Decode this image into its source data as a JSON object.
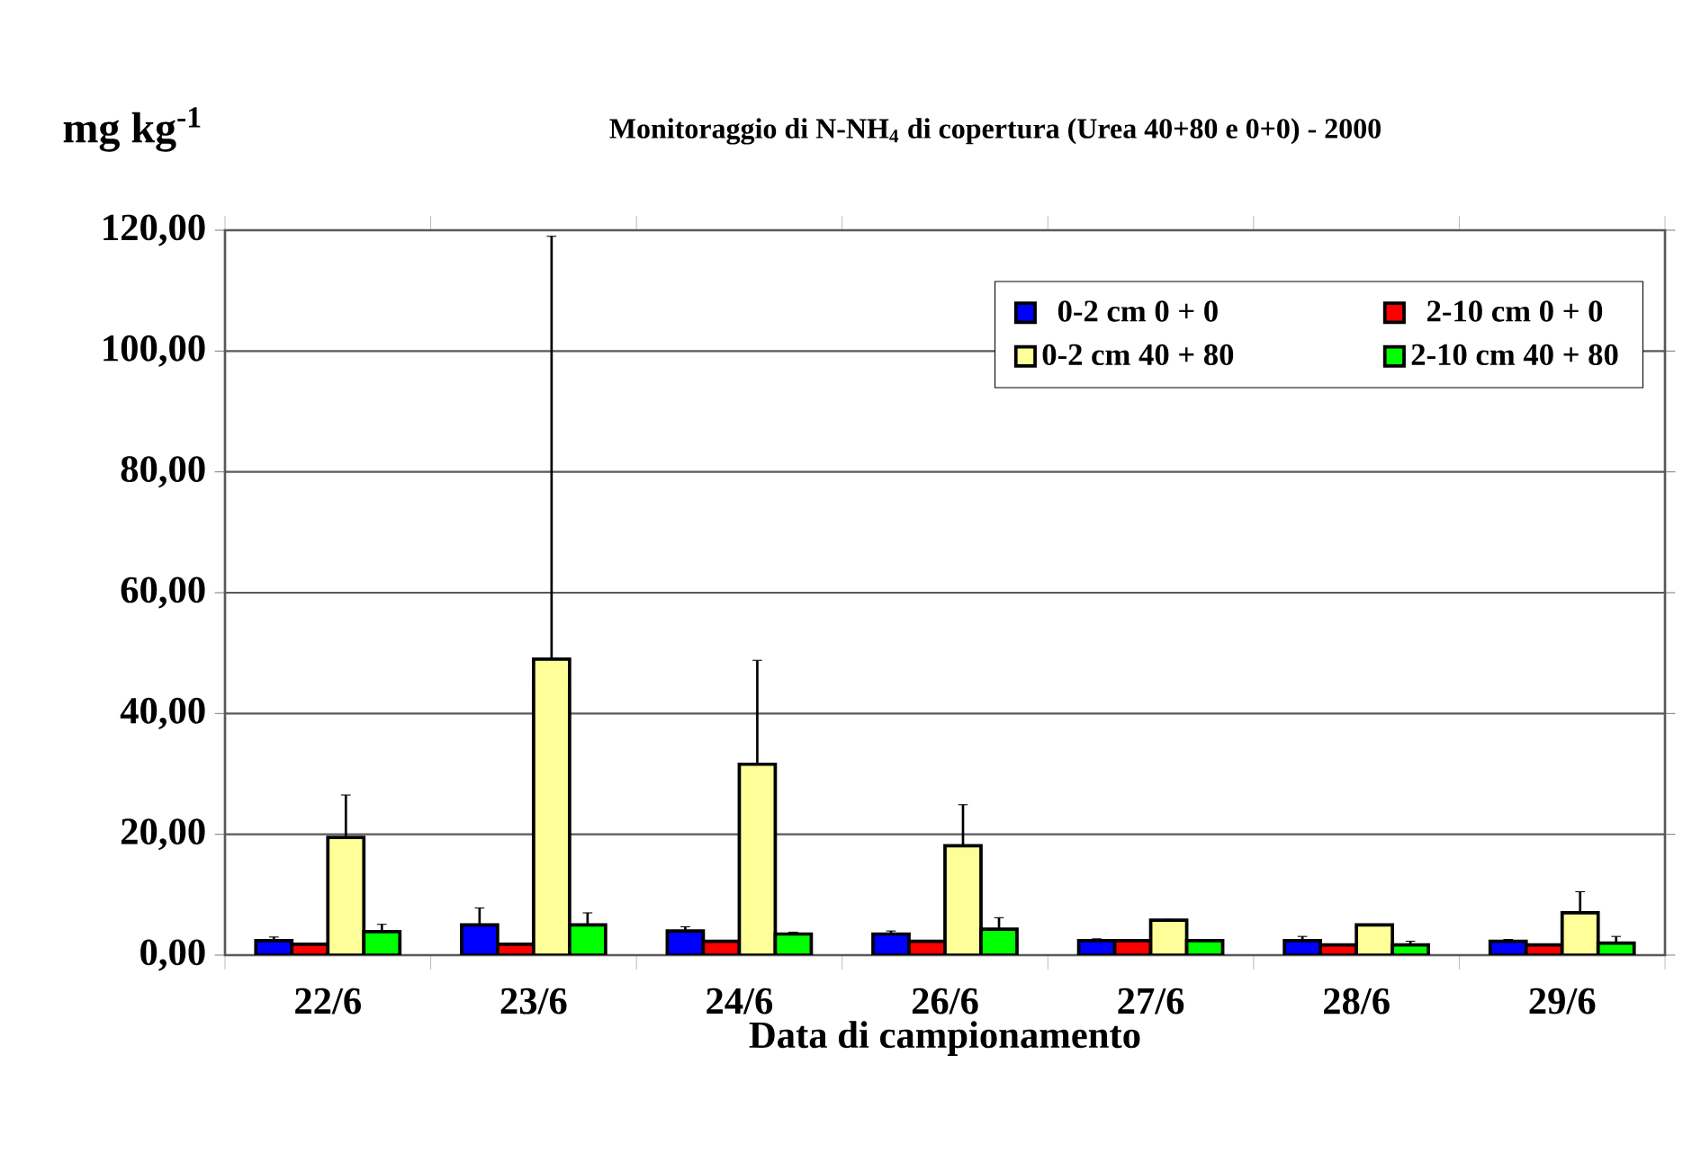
{
  "chart_data": {
    "type": "bar",
    "title": "Monitoraggio di N-NH$_{4}$ di copertura (Urea 40+80 e 0+0) - 2000",
    "ylabel": "mg kg$^{-1}$",
    "xlabel": "Data di campionamento",
    "categories": [
      "22/6",
      "23/6",
      "24/6",
      "26/6",
      "27/6",
      "28/6",
      "29/6"
    ],
    "series": [
      {
        "name": "0-2 cm 0 + 0",
        "color": "#0000ff",
        "values": [
          2.4,
          5.0,
          4.0,
          3.5,
          2.4,
          2.4,
          2.3
        ],
        "errors": [
          [
            2.4,
            3.0
          ],
          [
            5.0,
            7.8
          ],
          [
            4.0,
            4.7
          ],
          [
            3.5,
            4.0
          ],
          [
            2.4,
            2.7
          ],
          [
            2.4,
            3.1
          ],
          [
            2.3,
            2.6
          ]
        ]
      },
      {
        "name": "2-10 cm 0 + 0",
        "color": "#ff0000",
        "values": [
          1.8,
          1.8,
          2.3,
          2.3,
          2.4,
          1.7,
          1.7
        ]
      },
      {
        "name": "0-2 cm 40 + 80",
        "color": "#ffff99",
        "values": [
          19.5,
          49.0,
          31.6,
          18.1,
          5.8,
          5.0,
          7.0
        ],
        "errors": [
          [
            19.5,
            26.5
          ],
          [
            49.0,
            119.0
          ],
          [
            31.6,
            48.8
          ],
          [
            18.1,
            24.9
          ],
          [
            5.8,
            5.9
          ],
          null,
          [
            7.0,
            10.5
          ]
        ]
      },
      {
        "name": "2-10 cm 40 + 80",
        "color": "#00ff00",
        "values": [
          3.9,
          5.0,
          3.5,
          4.3,
          2.4,
          1.7,
          2.0
        ],
        "errors": [
          [
            3.9,
            5.1
          ],
          [
            5.0,
            7.0
          ],
          [
            3.5,
            3.8
          ],
          [
            4.3,
            6.2
          ],
          null,
          [
            1.7,
            2.3
          ],
          [
            2.0,
            3.1
          ]
        ]
      }
    ],
    "ylim": [
      0,
      120
    ],
    "yticks": [
      {
        "value": 0,
        "label": "0,00"
      },
      {
        "value": 20,
        "label": "20,00"
      },
      {
        "value": 40,
        "label": "40,00"
      },
      {
        "value": 60,
        "label": "60,00"
      },
      {
        "value": 80,
        "label": "80,00"
      },
      {
        "value": 100,
        "label": "100,00"
      },
      {
        "value": 120,
        "label": "120,00"
      }
    ],
    "grid": "y",
    "legend": "top right"
  }
}
